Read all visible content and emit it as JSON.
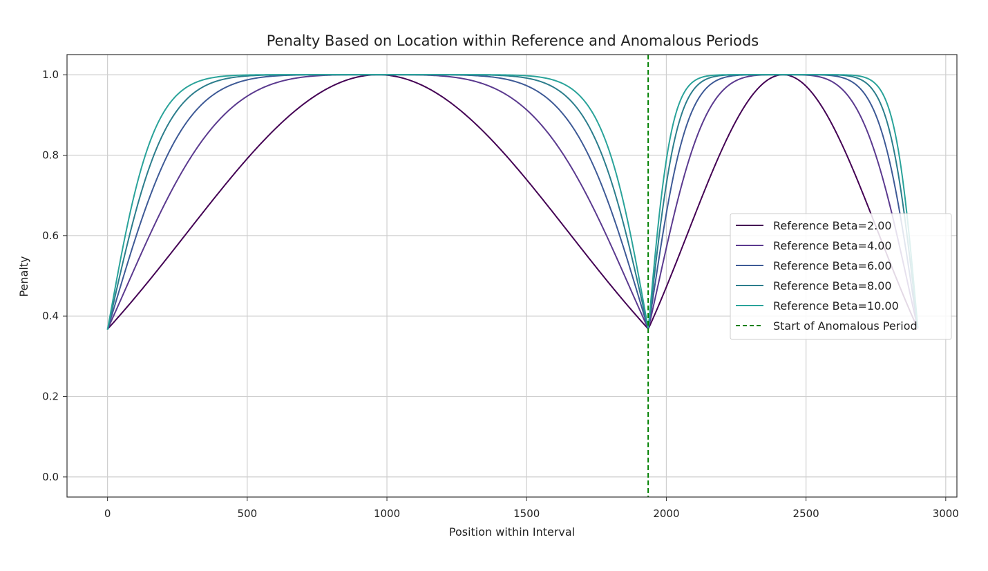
{
  "chart_data": {
    "type": "line",
    "title": "Penalty Based on Location within Reference and Anomalous Periods",
    "xlabel": "Position within Interval",
    "ylabel": "Penalty",
    "xlim": [
      -145,
      3040
    ],
    "ylim": [
      -0.05,
      1.05
    ],
    "xticks": [
      0,
      500,
      1000,
      1500,
      2000,
      2500,
      3000
    ],
    "xtick_labels": [
      "0",
      "500",
      "1000",
      "1500",
      "2000",
      "2500",
      "3000"
    ],
    "yticks": [
      0.0,
      0.2,
      0.4,
      0.6,
      0.8,
      1.0
    ],
    "ytick_labels": [
      "0.0",
      "0.2",
      "0.4",
      "0.6",
      "0.8",
      "1.0"
    ],
    "grid": true,
    "legend_position": "center-right",
    "model": {
      "reference_period": [
        0,
        1935
      ],
      "anomalous_period": [
        1935,
        2900
      ],
      "reference_peak": 968,
      "anomalous_peak": 2418
    },
    "series": [
      {
        "name": "Reference Beta=2.00",
        "beta": 2,
        "color": "#440154"
      },
      {
        "name": "Reference Beta=4.00",
        "beta": 4,
        "color": "#5b3a8f"
      },
      {
        "name": "Reference Beta=6.00",
        "beta": 6,
        "color": "#3e5a96"
      },
      {
        "name": "Reference Beta=8.00",
        "beta": 8,
        "color": "#2c7d8c"
      },
      {
        "name": "Reference Beta=10.00",
        "beta": 10,
        "color": "#2aa39a"
      }
    ],
    "vline": {
      "x": 1935,
      "label": "Start of Anomalous Period",
      "color": "#008000",
      "style": "dashed"
    }
  }
}
